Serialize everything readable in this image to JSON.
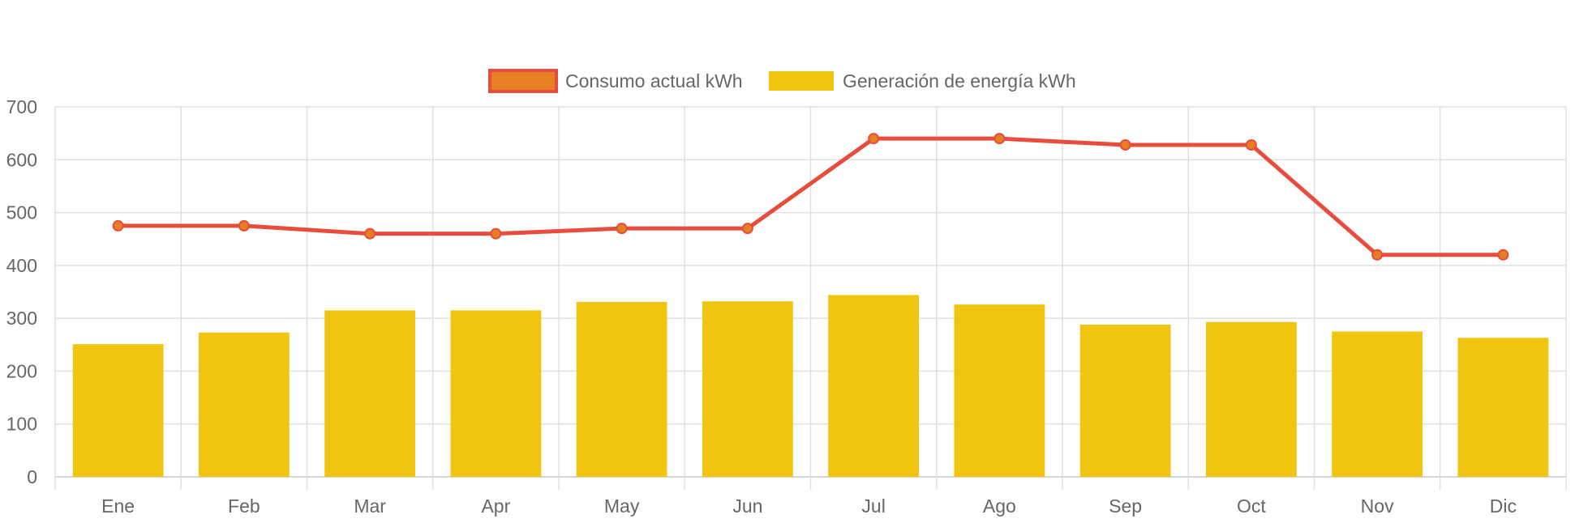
{
  "chart_data": {
    "type": "bar",
    "title": "",
    "xlabel": "",
    "ylabel": "",
    "ylim": [
      0,
      700
    ],
    "yticks": [
      0,
      100,
      200,
      300,
      400,
      500,
      600,
      700
    ],
    "grid": true,
    "legend_position": "top-center",
    "categories": [
      "Ene",
      "Feb",
      "Mar",
      "Apr",
      "May",
      "Jun",
      "Jul",
      "Ago",
      "Sep",
      "Oct",
      "Nov",
      "Dic"
    ],
    "series": [
      {
        "name": "Consumo actual kWh",
        "type": "line",
        "color": "#e74c3c",
        "point_color": "#e67e22",
        "values": [
          475,
          475,
          460,
          460,
          470,
          470,
          640,
          640,
          628,
          628,
          420,
          420
        ]
      },
      {
        "name": "Generación de energía kWh",
        "type": "bar",
        "color": "#f1c40f",
        "values": [
          251,
          273,
          315,
          315,
          331,
          332,
          344,
          326,
          288,
          293,
          275,
          263
        ]
      }
    ]
  }
}
